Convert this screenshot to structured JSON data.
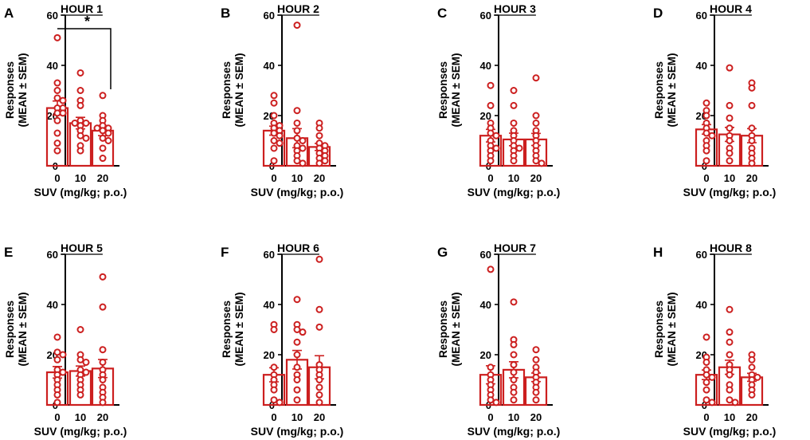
{
  "figure": {
    "common": {
      "categories": [
        "0",
        "10",
        "20"
      ],
      "xlabel": "SUV (mg/kg; p.o.)",
      "ylabel_line1": "Responses",
      "ylabel_line2": "(MEAN ± SEM)",
      "yticks": [
        "0",
        "20",
        "40",
        "60"
      ],
      "ylim": [
        0,
        60
      ],
      "color": "#cc1f1f"
    }
  },
  "chart_data": [
    {
      "type": "bar",
      "panel": "A",
      "title": "HOUR 1",
      "categories": [
        "0",
        "10",
        "20"
      ],
      "xlabel": "SUV (mg/kg; p.o.)",
      "ylabel": "Responses (MEAN ± SEM)",
      "ylim": [
        0,
        60
      ],
      "means": [
        23,
        17,
        14
      ],
      "sem": [
        2.8,
        2.3,
        2.0
      ],
      "points": [
        [
          51,
          33,
          30,
          27,
          26,
          23,
          23,
          21,
          21,
          18,
          13,
          9,
          6
        ],
        [
          37,
          30,
          26,
          24,
          18,
          17,
          17,
          16,
          14,
          12,
          11,
          8,
          6
        ],
        [
          28,
          20,
          18,
          16,
          15,
          15,
          14,
          13,
          11,
          10,
          7,
          3
        ]
      ],
      "significance": {
        "from": "0",
        "to": "20",
        "label": "*"
      }
    },
    {
      "type": "bar",
      "panel": "B",
      "title": "HOUR 2",
      "categories": [
        "0",
        "10",
        "20"
      ],
      "xlabel": "SUV (mg/kg; p.o.)",
      "ylabel": "Responses (MEAN ± SEM)",
      "ylim": [
        0,
        60
      ],
      "means": [
        14,
        11,
        7.5
      ],
      "sem": [
        1.8,
        3.8,
        1.4
      ],
      "points": [
        [
          28,
          25,
          20,
          17,
          16,
          15,
          14,
          13,
          12,
          10,
          9,
          7,
          2
        ],
        [
          56,
          22,
          17,
          14,
          11,
          10,
          8,
          7,
          6,
          4,
          2,
          1
        ],
        [
          17,
          15,
          12,
          9,
          8,
          7,
          6,
          5,
          4,
          3,
          2,
          1
        ]
      ]
    },
    {
      "type": "bar",
      "panel": "C",
      "title": "HOUR 3",
      "categories": [
        "0",
        "10",
        "20"
      ],
      "xlabel": "SUV (mg/kg; p.o.)",
      "ylabel": "Responses (MEAN ± SEM)",
      "ylim": [
        0,
        60
      ],
      "means": [
        12,
        10.5,
        10.5
      ],
      "sem": [
        2.5,
        2.5,
        2.4
      ],
      "points": [
        [
          32,
          24,
          17,
          15,
          13,
          12,
          10,
          8,
          7,
          6,
          4,
          2
        ],
        [
          30,
          24,
          17,
          14,
          12,
          10,
          8,
          7,
          6,
          4,
          2
        ],
        [
          35,
          20,
          17,
          14,
          12,
          10,
          8,
          6,
          4,
          2,
          1
        ]
      ]
    },
    {
      "type": "bar",
      "panel": "D",
      "title": "HOUR 4",
      "categories": [
        "0",
        "10",
        "20"
      ],
      "xlabel": "SUV (mg/kg; p.o.)",
      "ylabel": "Responses (MEAN ± SEM)",
      "ylim": [
        0,
        60
      ],
      "means": [
        14.5,
        12.5,
        12
      ],
      "sem": [
        1.9,
        2.8,
        2.8
      ],
      "points": [
        [
          25,
          22,
          20,
          17,
          15,
          13,
          12,
          10,
          8,
          6,
          2
        ],
        [
          39,
          24,
          19,
          15,
          12,
          10,
          7,
          5,
          2
        ],
        [
          33,
          31,
          24,
          15,
          12,
          10,
          7,
          5,
          3,
          1
        ]
      ]
    },
    {
      "type": "bar",
      "panel": "E",
      "title": "HOUR 5",
      "categories": [
        "0",
        "10",
        "20"
      ],
      "xlabel": "SUV (mg/kg; p.o.)",
      "ylabel": "Responses (MEAN ± SEM)",
      "ylim": [
        0,
        60
      ],
      "means": [
        13,
        13.5,
        14.5
      ],
      "sem": [
        2.3,
        2.0,
        3.6
      ],
      "points": [
        [
          27,
          21,
          20,
          18,
          14,
          13,
          12,
          10,
          8,
          6,
          4,
          1
        ],
        [
          30,
          20,
          18,
          17,
          14,
          13,
          12,
          10,
          8,
          6,
          4
        ],
        [
          51,
          39,
          22,
          17,
          14,
          12,
          10,
          7,
          5,
          3,
          1
        ]
      ]
    },
    {
      "type": "bar",
      "panel": "F",
      "title": "HOUR 6",
      "categories": [
        "0",
        "10",
        "20"
      ],
      "xlabel": "SUV (mg/kg; p.o.)",
      "ylabel": "Responses (MEAN ± SEM)",
      "ylim": [
        0,
        60
      ],
      "means": [
        12,
        18,
        15
      ],
      "sem": [
        2.8,
        3.7,
        4.6
      ],
      "points": [
        [
          32,
          30,
          15,
          12,
          10,
          8,
          6,
          2,
          1
        ],
        [
          42,
          32,
          30,
          29,
          25,
          20,
          15,
          12,
          10,
          6,
          2
        ],
        [
          58,
          38,
          31,
          16,
          14,
          12,
          10,
          7,
          4,
          1
        ]
      ]
    },
    {
      "type": "bar",
      "panel": "G",
      "title": "HOUR 7",
      "categories": [
        "0",
        "10",
        "20"
      ],
      "xlabel": "SUV (mg/kg; p.o.)",
      "ylabel": "Responses (MEAN ± SEM)",
      "ylim": [
        0,
        60
      ],
      "means": [
        12,
        14,
        11
      ],
      "sem": [
        3.6,
        3.2,
        1.7
      ],
      "points": [
        [
          54,
          15,
          12,
          10,
          8,
          6,
          4,
          2,
          1
        ],
        [
          41,
          26,
          24,
          20,
          16,
          13,
          10,
          7,
          5,
          2
        ],
        [
          22,
          18,
          15,
          13,
          11,
          9,
          7,
          5,
          2
        ]
      ]
    },
    {
      "type": "bar",
      "panel": "H",
      "title": "HOUR 8",
      "categories": [
        "0",
        "10",
        "20"
      ],
      "xlabel": "SUV (mg/kg; p.o.)",
      "ylabel": "Responses (MEAN ± SEM)",
      "ylim": [
        0,
        60
      ],
      "means": [
        12,
        15,
        11
      ],
      "sem": [
        1.9,
        2.8,
        1.6
      ],
      "points": [
        [
          27,
          19,
          17,
          14,
          12,
          11,
          9,
          6,
          2,
          1
        ],
        [
          38,
          29,
          25,
          20,
          16,
          14,
          12,
          8,
          6,
          2,
          1
        ],
        [
          20,
          18,
          15,
          12,
          11,
          10,
          8,
          6,
          4
        ]
      ]
    }
  ]
}
